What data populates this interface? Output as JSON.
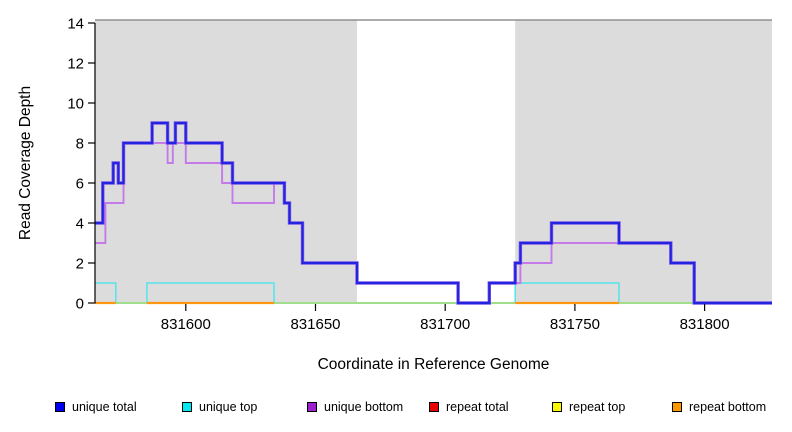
{
  "figure": {
    "xlabel": "Coordinate in Reference Genome",
    "ylabel": "Read Coverage Depth"
  },
  "chart_data": {
    "type": "line",
    "subtype": "step-coverage-plot",
    "title": "",
    "xlabel": "Coordinate in Reference Genome",
    "ylabel": "Read Coverage Depth",
    "xlim": [
      831565,
      831826
    ],
    "ylim": [
      0,
      14
    ],
    "x_ticks": [
      831600,
      831650,
      831700,
      831750,
      831800
    ],
    "y_ticks": [
      0,
      2,
      4,
      6,
      8,
      10,
      12,
      14
    ],
    "grid": false,
    "legend_position": "bottom",
    "background_regions": [
      {
        "x0": 831565,
        "x1": 831666,
        "color": "#dcdcdc"
      },
      {
        "x0": 831727,
        "x1": 831826,
        "color": "#dcdcdc"
      }
    ],
    "top_border_line": {
      "y": 14.1,
      "color": "#909090"
    },
    "series": [
      {
        "name": "repeat total",
        "color": "#e80000",
        "visible": "covered by other zero-depth lines",
        "step_points": [
          [
            831565,
            0
          ],
          [
            831826,
            0
          ]
        ]
      },
      {
        "name": "repeat top",
        "color": "#f8f800",
        "visible": "covered by other zero-depth lines",
        "step_points": [
          [
            831565,
            0
          ],
          [
            831826,
            0
          ]
        ]
      },
      {
        "name": "unique top",
        "color": "#55e4ea",
        "step_points": [
          [
            831565,
            1
          ],
          [
            831573,
            0
          ],
          [
            831585,
            1
          ],
          [
            831634,
            0
          ],
          [
            831727,
            1
          ],
          [
            831767,
            0
          ],
          [
            831826,
            0
          ]
        ]
      },
      {
        "name": "repeat bottom",
        "color": "#ff9612",
        "step_points": [
          [
            831565,
            0
          ],
          [
            831826,
            0
          ]
        ],
        "visible_baseline_segments": [
          [
            831565,
            831573
          ],
          [
            831585,
            831634
          ],
          [
            831727,
            831767
          ]
        ]
      },
      {
        "name": "unique bottom",
        "color": "#c47ae8",
        "step_points": [
          [
            831565,
            3
          ],
          [
            831569,
            5
          ],
          [
            831576,
            8
          ],
          [
            831593,
            7
          ],
          [
            831595,
            8
          ],
          [
            831600,
            7
          ],
          [
            831614,
            6
          ],
          [
            831618,
            5
          ],
          [
            831634,
            6
          ],
          [
            831638,
            5
          ],
          [
            831640,
            4
          ],
          [
            831645,
            2
          ],
          [
            831666,
            1
          ],
          [
            831705,
            0
          ],
          [
            831717,
            1
          ],
          [
            831729,
            2
          ],
          [
            831741,
            3
          ],
          [
            831787,
            2
          ],
          [
            831796,
            0
          ],
          [
            831826,
            0
          ]
        ]
      },
      {
        "name": "unique total",
        "color": "#2424e0",
        "halo_color": "#7a58e8",
        "step_points": [
          [
            831565,
            4
          ],
          [
            831568,
            6
          ],
          [
            831572,
            7
          ],
          [
            831574,
            6
          ],
          [
            831576,
            8
          ],
          [
            831587,
            9
          ],
          [
            831593,
            8
          ],
          [
            831596,
            9
          ],
          [
            831600,
            8
          ],
          [
            831614,
            7
          ],
          [
            831618,
            6
          ],
          [
            831638,
            5
          ],
          [
            831640,
            4
          ],
          [
            831645,
            2
          ],
          [
            831666,
            1
          ],
          [
            831705,
            0
          ],
          [
            831717,
            1
          ],
          [
            831727,
            2
          ],
          [
            831729,
            3
          ],
          [
            831741,
            4
          ],
          [
            831767,
            3
          ],
          [
            831787,
            2
          ],
          [
            831796,
            0
          ],
          [
            831826,
            0
          ]
        ]
      }
    ],
    "baseline_overlap_color": "#9cd49c",
    "baseline_overlap_segments": [
      [
        831565,
        831797
      ]
    ]
  },
  "legend": {
    "items": [
      {
        "label": "unique total",
        "color": "#0000f0"
      },
      {
        "label": "unique top",
        "color": "#00e8f0"
      },
      {
        "label": "unique bottom",
        "color": "#9a20d0"
      },
      {
        "label": "repeat total",
        "color": "#e80000"
      },
      {
        "label": "repeat top",
        "color": "#f8f800"
      },
      {
        "label": "repeat bottom",
        "color": "#ff9800"
      }
    ]
  }
}
